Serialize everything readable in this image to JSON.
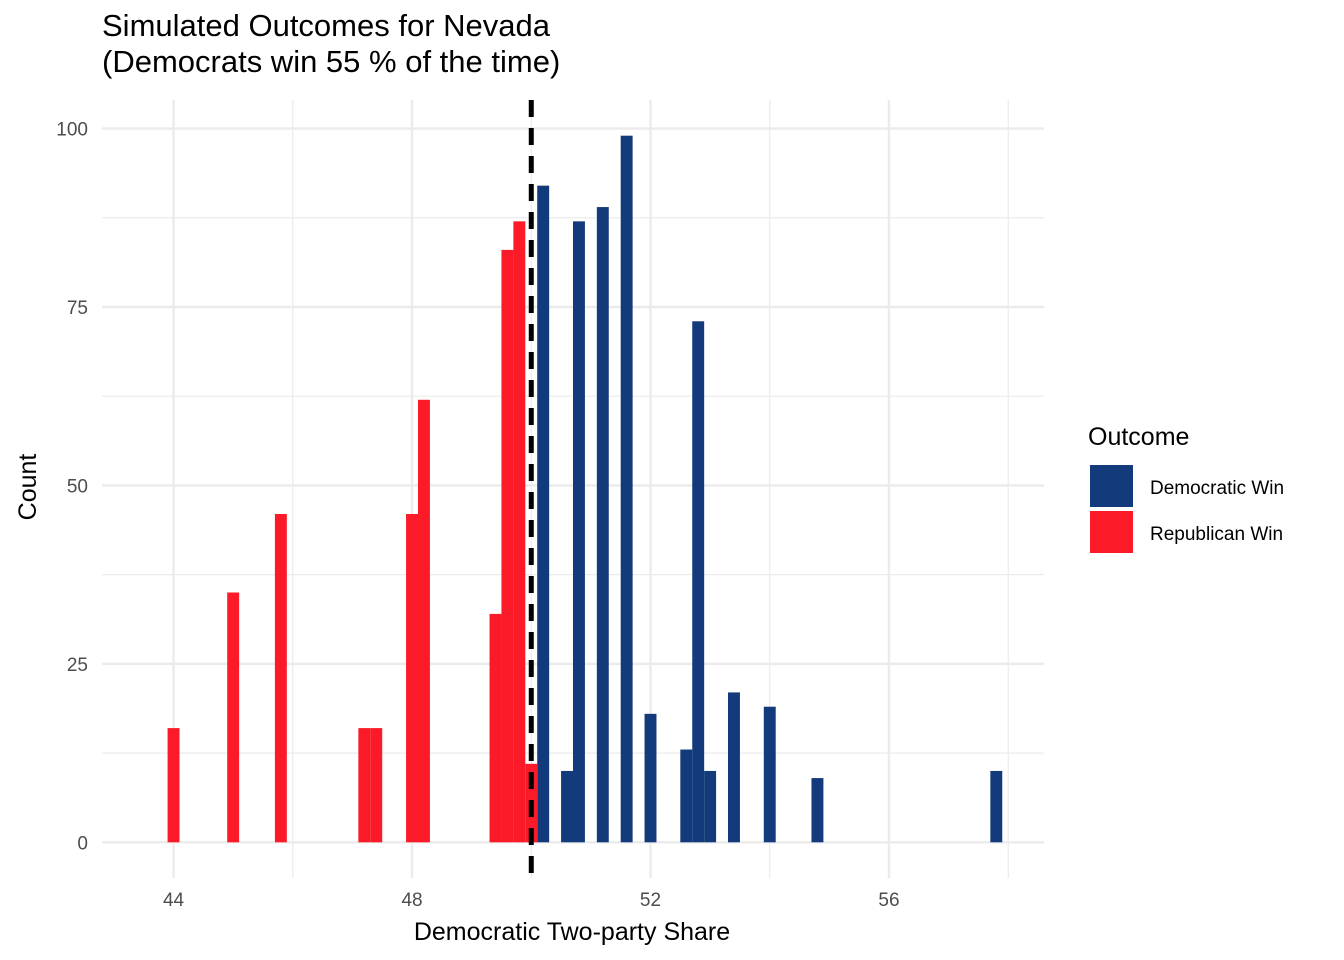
{
  "chart_data": {
    "type": "bar",
    "title_line1": "Simulated Outcomes for Nevada",
    "title_line2": "(Democrats win 55 % of the time)",
    "xlabel": "Democratic Two-party Share",
    "ylabel": "Count",
    "xlim": [
      42.8,
      58.6
    ],
    "ylim": [
      -5,
      104
    ],
    "xticks": [
      44,
      48,
      52,
      56
    ],
    "yticks": [
      0,
      25,
      50,
      75,
      100
    ],
    "threshold": 50,
    "grid": true,
    "legend": {
      "title": "Outcome",
      "placement": "right"
    },
    "series": [
      {
        "name": "Democratic Win",
        "color": "#133a7a",
        "bins": [
          {
            "x": 50.2,
            "y": 92
          },
          {
            "x": 50.6,
            "y": 10
          },
          {
            "x": 50.8,
            "y": 87
          },
          {
            "x": 51.2,
            "y": 89
          },
          {
            "x": 51.6,
            "y": 99
          },
          {
            "x": 52.0,
            "y": 18
          },
          {
            "x": 52.6,
            "y": 13
          },
          {
            "x": 52.8,
            "y": 73
          },
          {
            "x": 53.0,
            "y": 10
          },
          {
            "x": 53.4,
            "y": 21
          },
          {
            "x": 54.0,
            "y": 19
          },
          {
            "x": 54.8,
            "y": 9
          },
          {
            "x": 57.8,
            "y": 10
          }
        ]
      },
      {
        "name": "Republican Win",
        "color": "#fa1a28",
        "bins": [
          {
            "x": 44.0,
            "y": 16
          },
          {
            "x": 45.0,
            "y": 35
          },
          {
            "x": 45.8,
            "y": 46
          },
          {
            "x": 47.2,
            "y": 16
          },
          {
            "x": 47.4,
            "y": 16
          },
          {
            "x": 48.0,
            "y": 46
          },
          {
            "x": 48.2,
            "y": 62
          },
          {
            "x": 49.4,
            "y": 32
          },
          {
            "x": 49.6,
            "y": 83
          },
          {
            "x": 49.8,
            "y": 87
          },
          {
            "x": 50.0,
            "y": 11
          }
        ]
      }
    ]
  }
}
